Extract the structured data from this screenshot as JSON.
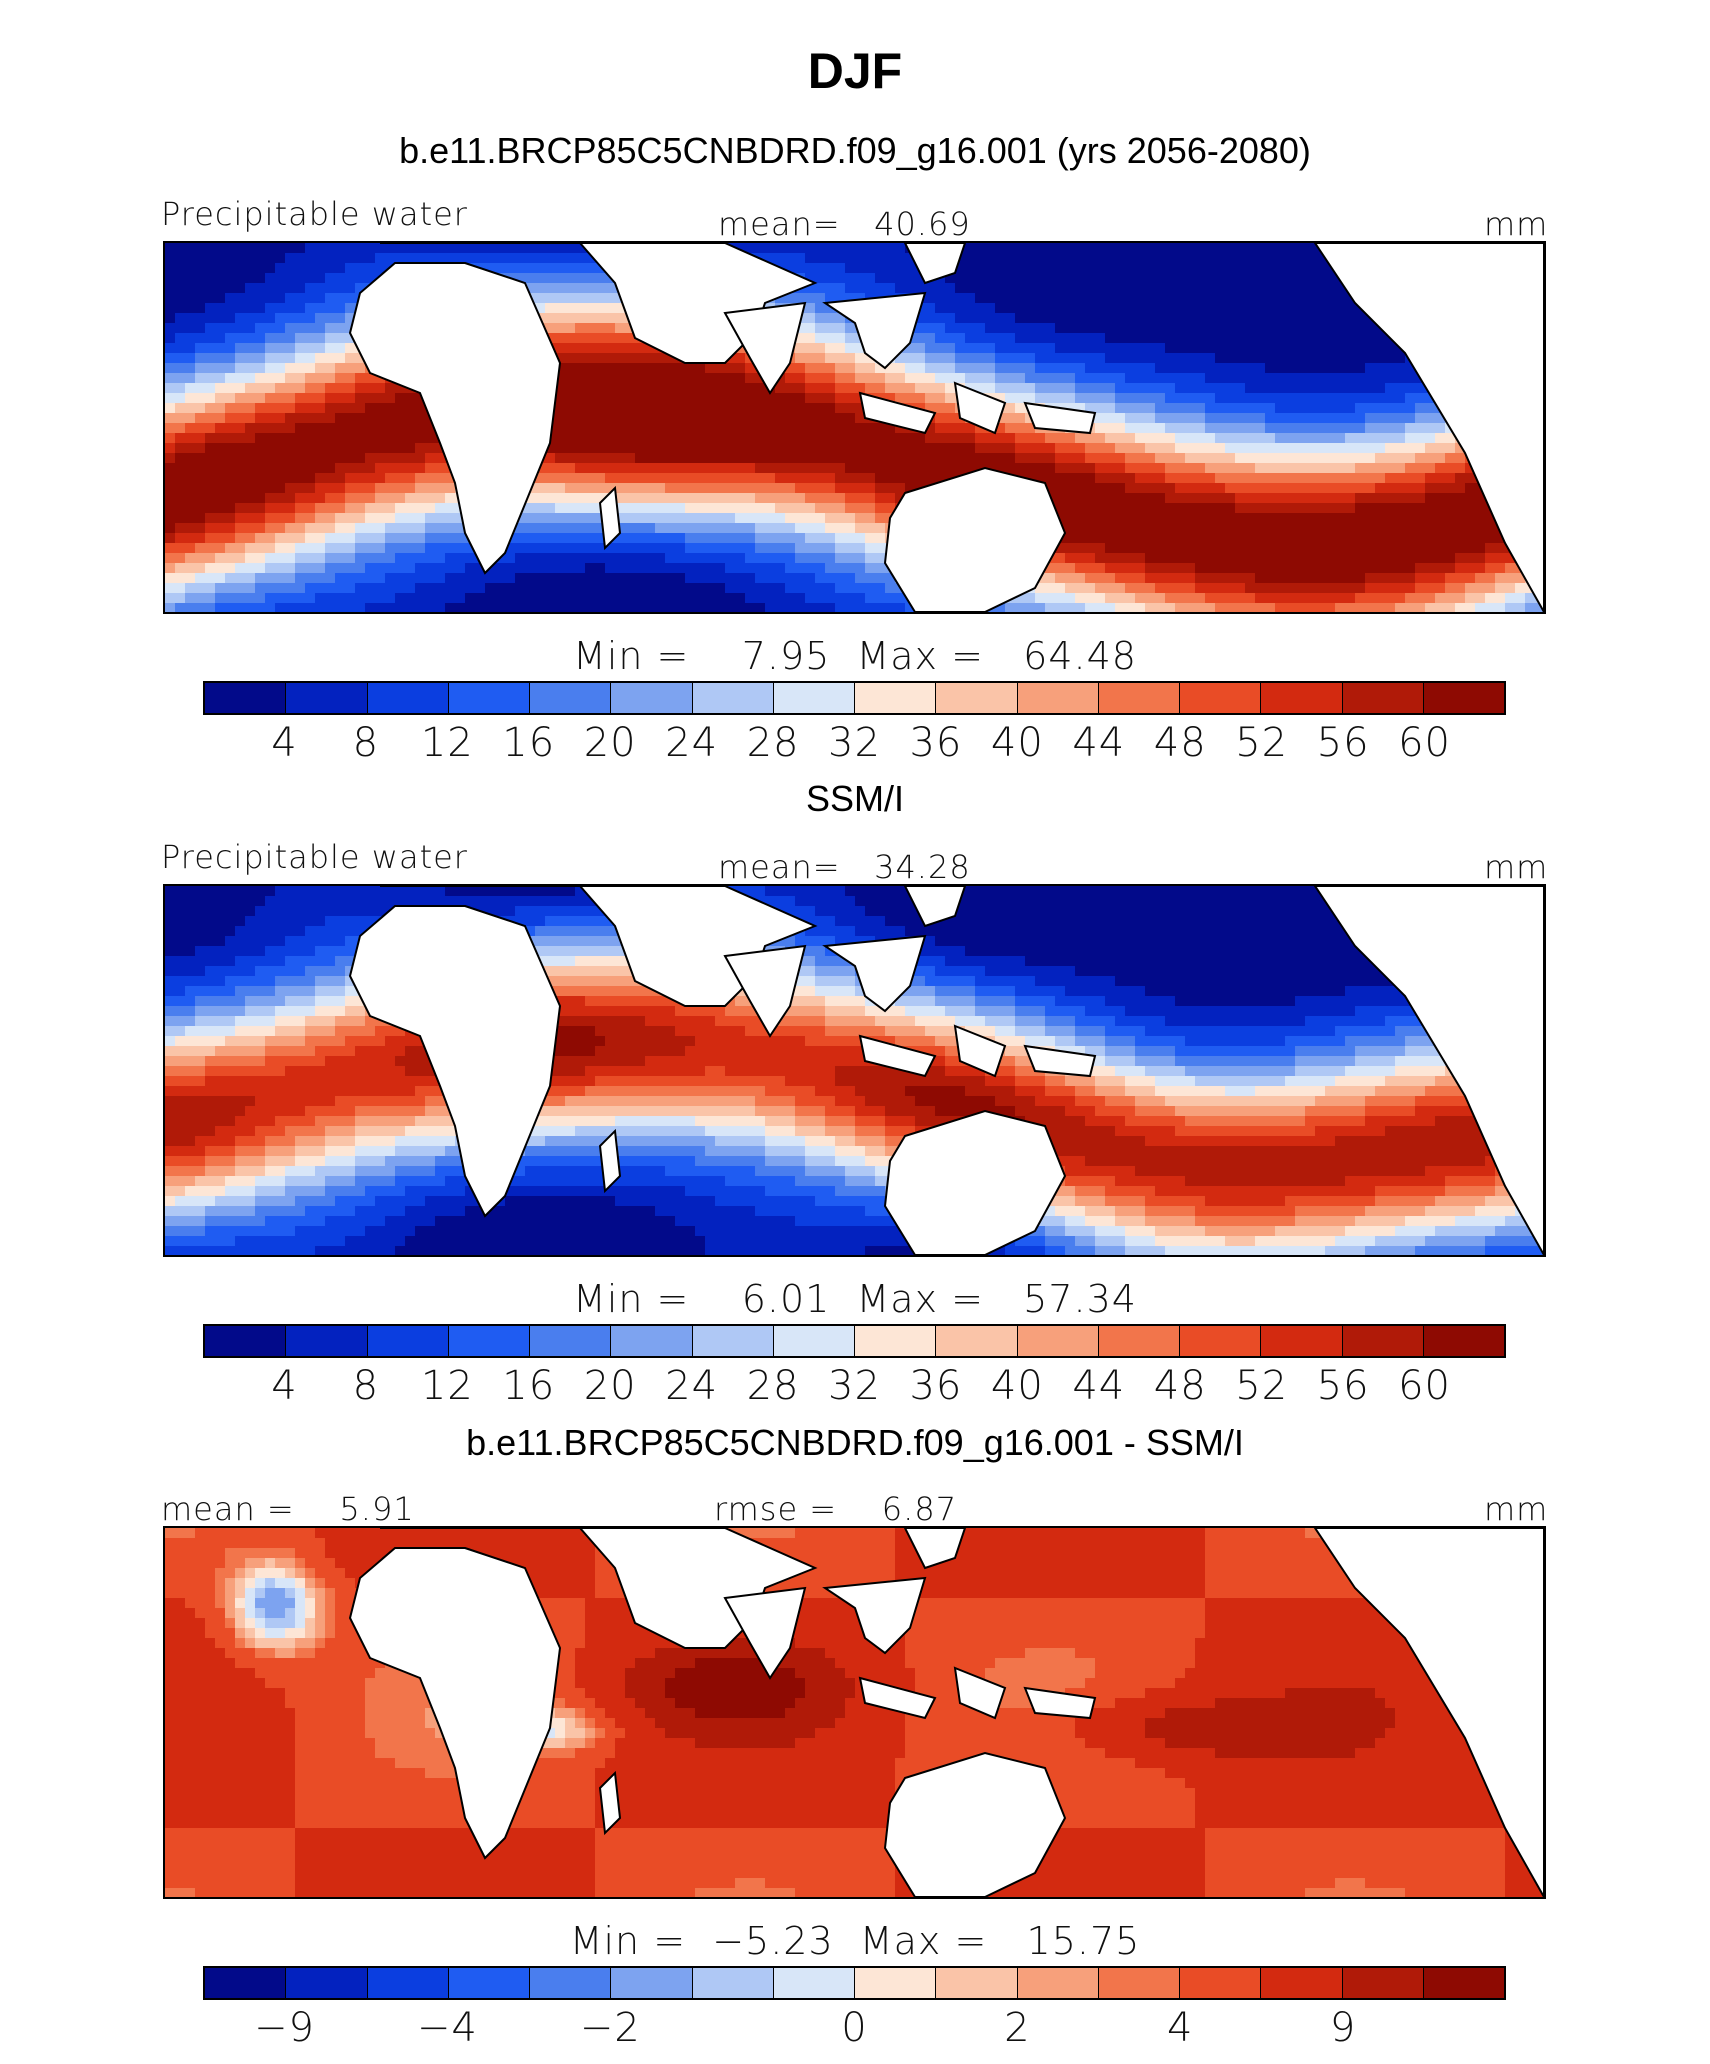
{
  "title": "DJF",
  "panels": [
    {
      "id": "model",
      "title": "b.e11.BRCP85C5CNBDRD.f09_g16.001 (yrs 2056-2080)",
      "left_label": "Precipitable water",
      "center_label": "mean=   40.69",
      "right_label": "mm",
      "minmax": "Min =    7.95  Max =   64.48",
      "colorbar_ticks": [
        "4",
        "8",
        "12",
        "16",
        "20",
        "24",
        "28",
        "32",
        "36",
        "40",
        "44",
        "48",
        "52",
        "56",
        "60"
      ]
    },
    {
      "id": "obs",
      "title": "SSM/I",
      "left_label": "Precipitable water",
      "center_label": "mean=   34.28",
      "right_label": "mm",
      "minmax": "Min =    6.01  Max =   57.34",
      "colorbar_ticks": [
        "4",
        "8",
        "12",
        "16",
        "20",
        "24",
        "28",
        "32",
        "36",
        "40",
        "44",
        "48",
        "52",
        "56",
        "60"
      ]
    },
    {
      "id": "diff",
      "title": "b.e11.BRCP85C5CNBDRD.f09_g16.001 - SSM/I",
      "left_label": "mean =    5.91",
      "center_label": "rmse =    6.87",
      "right_label": "mm",
      "minmax": "Min =  −5.23  Max =   15.75",
      "colorbar_ticks": [
        "−9",
        "−4",
        "−2",
        "0",
        "2",
        "4",
        "9"
      ]
    }
  ],
  "colors": {
    "palette": [
      "#020a8a",
      "#0322bf",
      "#0b3ee0",
      "#1f5cf2",
      "#4a7eee",
      "#7da3f0",
      "#afc8f5",
      "#d8e6f8",
      "#fde6d6",
      "#fac4a8",
      "#f7a07b",
      "#f2754b",
      "#e94c26",
      "#d32a10",
      "#b01a08",
      "#8e0a02"
    ],
    "land": "#ffffff",
    "coast": "#000000"
  }
}
